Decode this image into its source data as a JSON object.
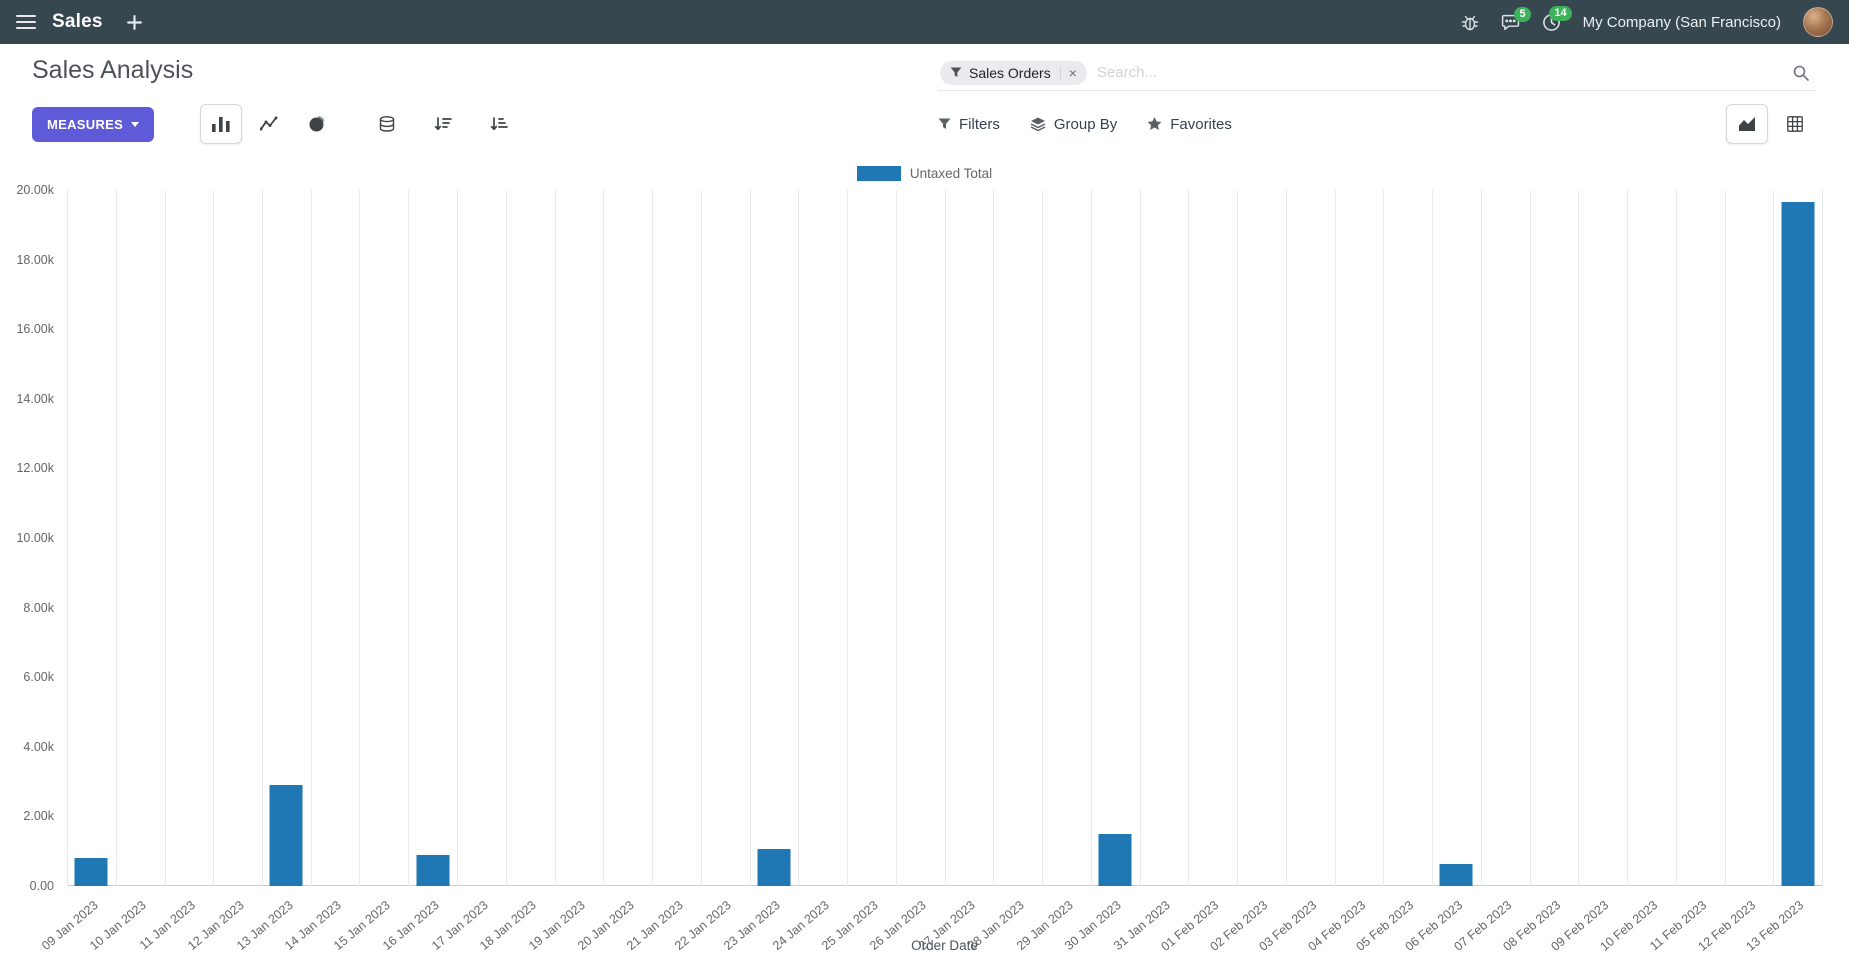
{
  "navbar": {
    "app_name": "Sales",
    "company": "My Company (San Francisco)",
    "badges": {
      "messages": "5",
      "activities": "14"
    }
  },
  "control_panel": {
    "breadcrumb": "Sales Analysis",
    "measures_button": "MEASURES",
    "search": {
      "facet_label": "Sales Orders",
      "facet_remove": "×",
      "placeholder": "Search..."
    },
    "filter_buttons": {
      "filters": "Filters",
      "group_by": "Group By",
      "favorites": "Favorites"
    }
  },
  "colors": {
    "navbar_bg": "#37474F",
    "primary_button": "#5E5AD8",
    "badge_green": "#3EB15B",
    "bar_blue": "#1f77b4"
  },
  "icons": {
    "hamburger": "three-lines-menu",
    "plus": "plus-sign",
    "bug": "bug-outline",
    "messages": "speech-bubble",
    "activities": "clock",
    "funnel": "filter-funnel",
    "magnifier": "search-glass",
    "bar_chart": "vertical-bars",
    "line_chart": "polyline-with-points",
    "pie_chart": "circle-with-wedge",
    "stacked": "database-cylinder",
    "sort_desc": "down-arrow-with-shrinking-bars",
    "sort_asc": "down-arrow-with-growing-bars",
    "group_by": "stacked-layers",
    "favorites": "star",
    "graph_view": "area-chart",
    "pivot_view": "grid-table"
  },
  "chart_data": {
    "type": "bar",
    "legend_label": "Untaxed Total",
    "legend_position": "top-center",
    "series_color": "#1f77b4",
    "xlabel": "Order Date",
    "ylabel": "",
    "ylim": [
      0,
      20000
    ],
    "ytick_step": 2000,
    "ytick_labels": [
      "0.00",
      "2.00k",
      "4.00k",
      "6.00k",
      "8.00k",
      "10.00k",
      "12.00k",
      "14.00k",
      "16.00k",
      "18.00k",
      "20.00k"
    ],
    "grid": "vertical-only",
    "categories": [
      "09 Jan 2023",
      "10 Jan 2023",
      "11 Jan 2023",
      "12 Jan 2023",
      "13 Jan 2023",
      "14 Jan 2023",
      "15 Jan 2023",
      "16 Jan 2023",
      "17 Jan 2023",
      "18 Jan 2023",
      "19 Jan 2023",
      "20 Jan 2023",
      "21 Jan 2023",
      "22 Jan 2023",
      "23 Jan 2023",
      "24 Jan 2023",
      "25 Jan 2023",
      "26 Jan 2023",
      "27 Jan 2023",
      "28 Jan 2023",
      "29 Jan 2023",
      "30 Jan 2023",
      "31 Jan 2023",
      "01 Feb 2023",
      "02 Feb 2023",
      "03 Feb 2023",
      "04 Feb 2023",
      "05 Feb 2023",
      "06 Feb 2023",
      "07 Feb 2023",
      "08 Feb 2023",
      "09 Feb 2023",
      "10 Feb 2023",
      "11 Feb 2023",
      "12 Feb 2023",
      "13 Feb 2023"
    ],
    "values": [
      800,
      0,
      0,
      0,
      2900,
      0,
      0,
      900,
      0,
      0,
      0,
      0,
      0,
      0,
      1050,
      0,
      0,
      0,
      0,
      0,
      0,
      1500,
      0,
      0,
      0,
      0,
      0,
      0,
      620,
      0,
      0,
      0,
      0,
      0,
      0,
      19650
    ]
  }
}
